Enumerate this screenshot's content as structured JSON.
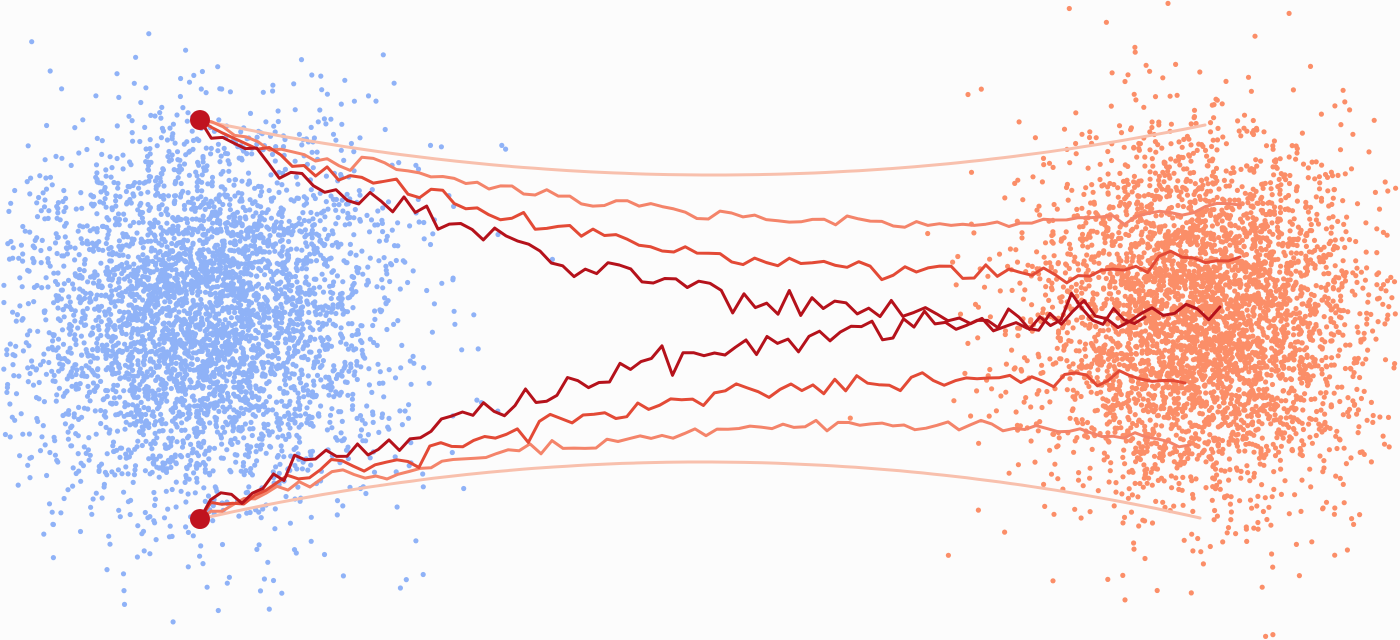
{
  "colors": {
    "background": "#fcfcfc",
    "source_points": "#8fb2f7",
    "target_points": "#fb8e68",
    "trajectory_light": "#f8c0ad",
    "trajectory_mid_light": "#f4846a",
    "trajectory_mid": "#e34a36",
    "trajectory_dark": "#b5121b",
    "anchor_dot": "#c0131f"
  },
  "diagram": {
    "source_cloud": {
      "name": "source-distribution",
      "n_points": 4200
    },
    "target_cloud": {
      "name": "target-distribution",
      "n_points": 4200
    },
    "trajectories_per_anchor": 4,
    "anchors": [
      "upper-start-point",
      "lower-start-point"
    ]
  }
}
